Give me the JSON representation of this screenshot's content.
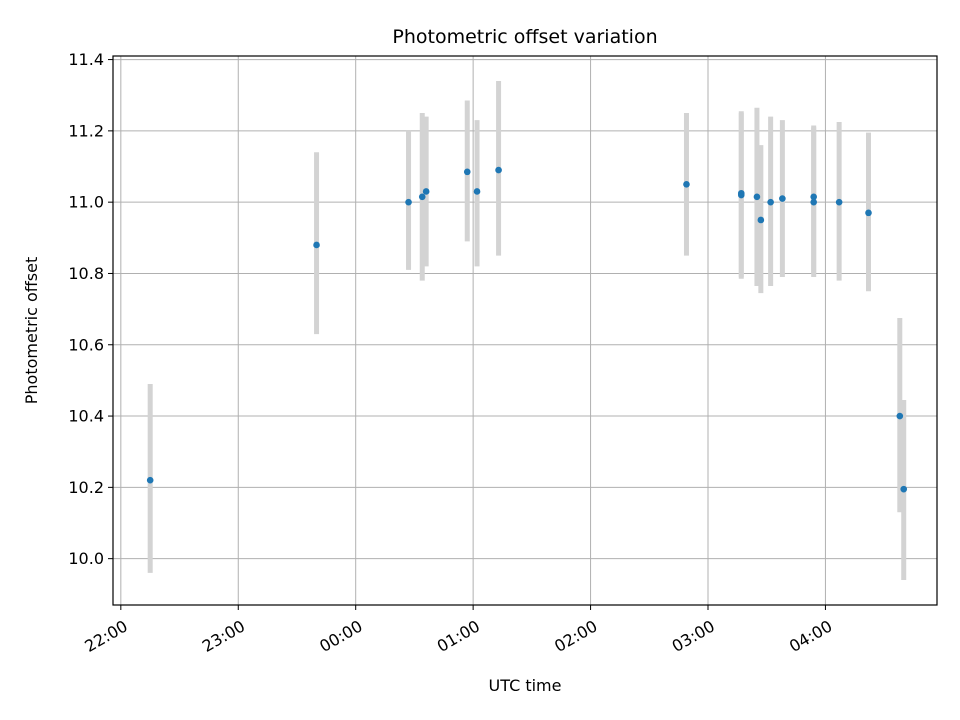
{
  "chart_data": {
    "type": "scatter",
    "title": "Photometric offset variation",
    "xlabel": "UTC time",
    "ylabel": "Photometric offset",
    "xlim": [
      "21:56",
      "04:57"
    ],
    "ylim": [
      9.87,
      11.41
    ],
    "x_ticks": [
      "22:00",
      "23:00",
      "00:00",
      "01:00",
      "02:00",
      "03:00",
      "04:00"
    ],
    "y_ticks": [
      10.0,
      10.2,
      10.4,
      10.6,
      10.8,
      11.0,
      11.2,
      11.4
    ],
    "grid": true,
    "marker_color": "#1f77b4",
    "errorbar_color": "#d3d3d3",
    "points": [
      {
        "x": "22:15",
        "y": 10.22,
        "ylow": 9.96,
        "yhigh": 10.49
      },
      {
        "x": "23:40",
        "y": 10.88,
        "ylow": 10.63,
        "yhigh": 11.14
      },
      {
        "x": "00:27",
        "y": 11.0,
        "ylow": 10.81,
        "yhigh": 11.2
      },
      {
        "x": "00:34",
        "y": 11.015,
        "ylow": 10.78,
        "yhigh": 11.25
      },
      {
        "x": "00:36",
        "y": 11.03,
        "ylow": 10.82,
        "yhigh": 11.24
      },
      {
        "x": "00:57",
        "y": 11.085,
        "ylow": 10.89,
        "yhigh": 11.285
      },
      {
        "x": "01:02",
        "y": 11.03,
        "ylow": 10.82,
        "yhigh": 11.23
      },
      {
        "x": "01:13",
        "y": 11.09,
        "ylow": 10.85,
        "yhigh": 11.34
      },
      {
        "x": "02:49",
        "y": 11.05,
        "ylow": 10.85,
        "yhigh": 11.25
      },
      {
        "x": "03:17",
        "y": 11.02,
        "ylow": 10.785,
        "yhigh": 11.255
      },
      {
        "x": "03:17",
        "y": 11.025,
        "ylow": 10.79,
        "yhigh": 11.25
      },
      {
        "x": "03:25",
        "y": 11.015,
        "ylow": 10.765,
        "yhigh": 11.265
      },
      {
        "x": "03:27",
        "y": 10.95,
        "ylow": 10.745,
        "yhigh": 11.16
      },
      {
        "x": "03:32",
        "y": 11.0,
        "ylow": 10.765,
        "yhigh": 11.24
      },
      {
        "x": "03:38",
        "y": 11.01,
        "ylow": 10.79,
        "yhigh": 11.23
      },
      {
        "x": "03:54",
        "y": 11.015,
        "ylow": 10.8,
        "yhigh": 11.215
      },
      {
        "x": "03:54",
        "y": 11.0,
        "ylow": 10.79,
        "yhigh": 11.21
      },
      {
        "x": "04:07",
        "y": 11.0,
        "ylow": 10.78,
        "yhigh": 11.225
      },
      {
        "x": "04:22",
        "y": 10.97,
        "ylow": 10.75,
        "yhigh": 11.195
      },
      {
        "x": "04:38",
        "y": 10.4,
        "ylow": 10.13,
        "yhigh": 10.675
      },
      {
        "x": "04:40",
        "y": 10.195,
        "ylow": 9.94,
        "yhigh": 10.445
      }
    ]
  }
}
